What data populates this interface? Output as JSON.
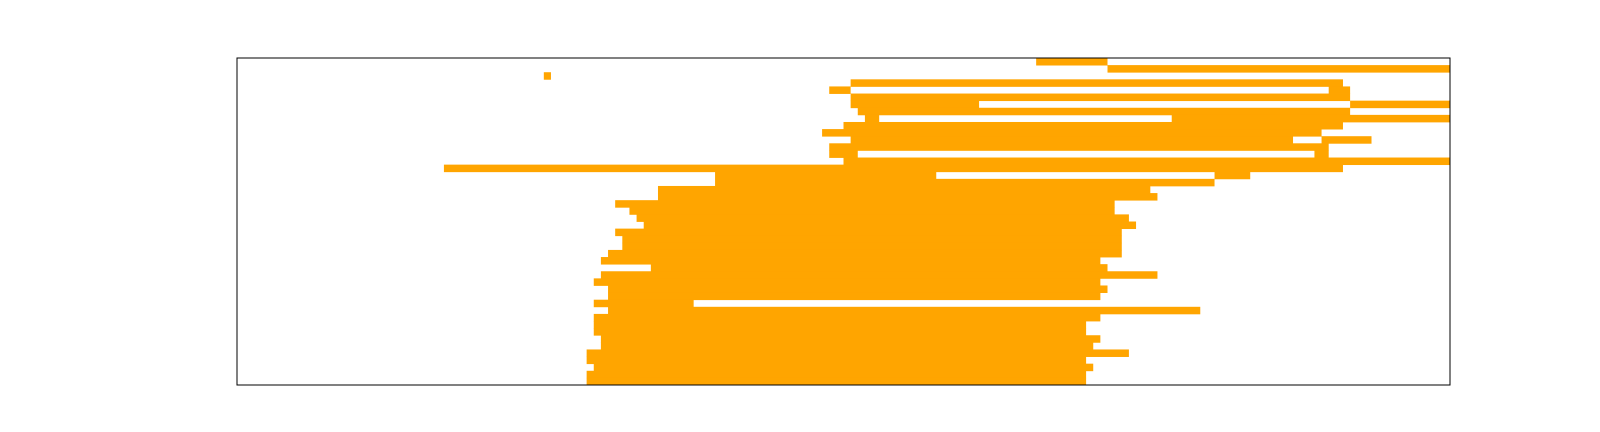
{
  "chart_data": {
    "type": "heatmap",
    "title": "",
    "xlabel": "",
    "ylabel": "",
    "grid": false,
    "legend": "none",
    "axis_ticks": false,
    "xlim": [
      0,
      170
    ],
    "ylim": [
      0,
      46
    ],
    "cell_color": "#ffa500",
    "background_color": "#ffffff",
    "frame_color": "#000000",
    "rows": [
      {
        "row": 0,
        "spans": [
          [
            112,
            122
          ]
        ]
      },
      {
        "row": 1,
        "spans": [
          [
            122,
            170
          ]
        ]
      },
      {
        "row": 2,
        "spans": [
          [
            43,
            44
          ]
        ]
      },
      {
        "row": 3,
        "spans": [
          [
            86,
            155
          ]
        ]
      },
      {
        "row": 4,
        "spans": [
          [
            83,
            86
          ],
          [
            153,
            156
          ]
        ]
      },
      {
        "row": 5,
        "spans": [
          [
            86,
            156
          ]
        ]
      },
      {
        "row": 6,
        "spans": [
          [
            86,
            104
          ],
          [
            156,
            170
          ]
        ]
      },
      {
        "row": 7,
        "spans": [
          [
            87,
            156
          ]
        ]
      },
      {
        "row": 8,
        "spans": [
          [
            88,
            90
          ],
          [
            131,
            170
          ]
        ]
      },
      {
        "row": 9,
        "spans": [
          [
            85,
            155
          ]
        ]
      },
      {
        "row": 10,
        "spans": [
          [
            82,
            152
          ]
        ]
      },
      {
        "row": 11,
        "spans": [
          [
            86,
            148
          ],
          [
            152,
            159
          ]
        ]
      },
      {
        "row": 12,
        "spans": [
          [
            83,
            153
          ]
        ]
      },
      {
        "row": 13,
        "spans": [
          [
            83,
            87
          ],
          [
            151,
            153
          ]
        ]
      },
      {
        "row": 14,
        "spans": [
          [
            85,
            170
          ]
        ]
      },
      {
        "row": 15,
        "spans": [
          [
            29,
            155
          ]
        ]
      },
      {
        "row": 16,
        "spans": [
          [
            67,
            98
          ],
          [
            137,
            142
          ]
        ]
      },
      {
        "row": 17,
        "spans": [
          [
            67,
            137
          ]
        ]
      },
      {
        "row": 18,
        "spans": [
          [
            59,
            128
          ]
        ]
      },
      {
        "row": 19,
        "spans": [
          [
            59,
            129
          ]
        ]
      },
      {
        "row": 20,
        "spans": [
          [
            53,
            123
          ]
        ]
      },
      {
        "row": 21,
        "spans": [
          [
            55,
            123
          ]
        ]
      },
      {
        "row": 22,
        "spans": [
          [
            56,
            125
          ]
        ]
      },
      {
        "row": 23,
        "spans": [
          [
            57,
            126
          ]
        ]
      },
      {
        "row": 24,
        "spans": [
          [
            53,
            124
          ]
        ]
      },
      {
        "row": 25,
        "spans": [
          [
            54,
            124
          ]
        ]
      },
      {
        "row": 26,
        "spans": [
          [
            54,
            124
          ]
        ]
      },
      {
        "row": 27,
        "spans": [
          [
            52,
            124
          ]
        ]
      },
      {
        "row": 28,
        "spans": [
          [
            51,
            121
          ]
        ]
      },
      {
        "row": 29,
        "spans": [
          [
            58,
            122
          ]
        ]
      },
      {
        "row": 30,
        "spans": [
          [
            51,
            129
          ]
        ]
      },
      {
        "row": 31,
        "spans": [
          [
            50,
            121
          ]
        ]
      },
      {
        "row": 32,
        "spans": [
          [
            52,
            122
          ]
        ]
      },
      {
        "row": 33,
        "spans": [
          [
            52,
            121
          ]
        ]
      },
      {
        "row": 34,
        "spans": [
          [
            50,
            64
          ]
        ]
      },
      {
        "row": 35,
        "spans": [
          [
            52,
            135
          ]
        ]
      },
      {
        "row": 36,
        "spans": [
          [
            50,
            121
          ]
        ]
      },
      {
        "row": 37,
        "spans": [
          [
            50,
            119
          ]
        ]
      },
      {
        "row": 38,
        "spans": [
          [
            50,
            119
          ]
        ]
      },
      {
        "row": 39,
        "spans": [
          [
            51,
            121
          ]
        ]
      },
      {
        "row": 40,
        "spans": [
          [
            51,
            120
          ]
        ]
      },
      {
        "row": 41,
        "spans": [
          [
            49,
            125
          ]
        ]
      },
      {
        "row": 42,
        "spans": [
          [
            49,
            119
          ]
        ]
      },
      {
        "row": 43,
        "spans": [
          [
            50,
            120
          ]
        ]
      },
      {
        "row": 44,
        "spans": [
          [
            49,
            119
          ]
        ]
      },
      {
        "row": 45,
        "spans": [
          [
            49,
            119
          ]
        ]
      }
    ]
  }
}
